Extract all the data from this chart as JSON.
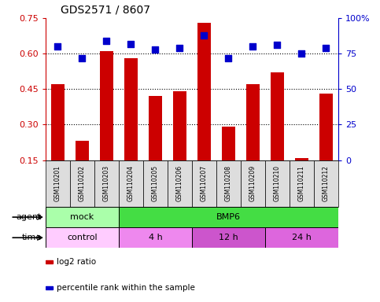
{
  "title": "GDS2571 / 8607",
  "samples": [
    "GSM110201",
    "GSM110202",
    "GSM110203",
    "GSM110204",
    "GSM110205",
    "GSM110206",
    "GSM110207",
    "GSM110208",
    "GSM110209",
    "GSM110210",
    "GSM110211",
    "GSM110212"
  ],
  "log2_ratio": [
    0.47,
    0.23,
    0.61,
    0.58,
    0.42,
    0.44,
    0.73,
    0.29,
    0.47,
    0.52,
    0.16,
    0.43
  ],
  "percentile": [
    80,
    72,
    84,
    82,
    78,
    79,
    88,
    72,
    80,
    81,
    75,
    79
  ],
  "ylim_left": [
    0.15,
    0.75
  ],
  "ylim_right": [
    0,
    100
  ],
  "yticks_left": [
    0.15,
    0.3,
    0.45,
    0.6,
    0.75
  ],
  "ytick_labels_left": [
    "0.15",
    "0.30",
    "0.45",
    "0.60",
    "0.75"
  ],
  "yticks_right": [
    0,
    25,
    50,
    75,
    100
  ],
  "ytick_labels_right": [
    "0",
    "25",
    "50",
    "75",
    "100%"
  ],
  "hlines": [
    0.3,
    0.45,
    0.6
  ],
  "bar_color": "#cc0000",
  "dot_color": "#0000cc",
  "agent_row": [
    {
      "label": "mock",
      "start": 0,
      "end": 3,
      "color": "#aaffaa"
    },
    {
      "label": "BMP6",
      "start": 3,
      "end": 12,
      "color": "#44dd44"
    }
  ],
  "time_row": [
    {
      "label": "control",
      "start": 0,
      "end": 3,
      "color": "#ffccff"
    },
    {
      "label": "4 h",
      "start": 3,
      "end": 6,
      "color": "#ee88ee"
    },
    {
      "label": "12 h",
      "start": 6,
      "end": 9,
      "color": "#cc55cc"
    },
    {
      "label": "24 h",
      "start": 9,
      "end": 12,
      "color": "#dd66dd"
    }
  ],
  "legend_items": [
    {
      "color": "#cc0000",
      "label": "log2 ratio"
    },
    {
      "color": "#0000cc",
      "label": "percentile rank within the sample"
    }
  ],
  "bar_width": 0.55,
  "dot_size": 40,
  "left_axis_color": "#cc0000",
  "right_axis_color": "#0000cc",
  "label_bg_color": "#dddddd",
  "tick_fontsize": 8,
  "sample_fontsize": 5.5,
  "row_fontsize": 8,
  "legend_fontsize": 7.5
}
